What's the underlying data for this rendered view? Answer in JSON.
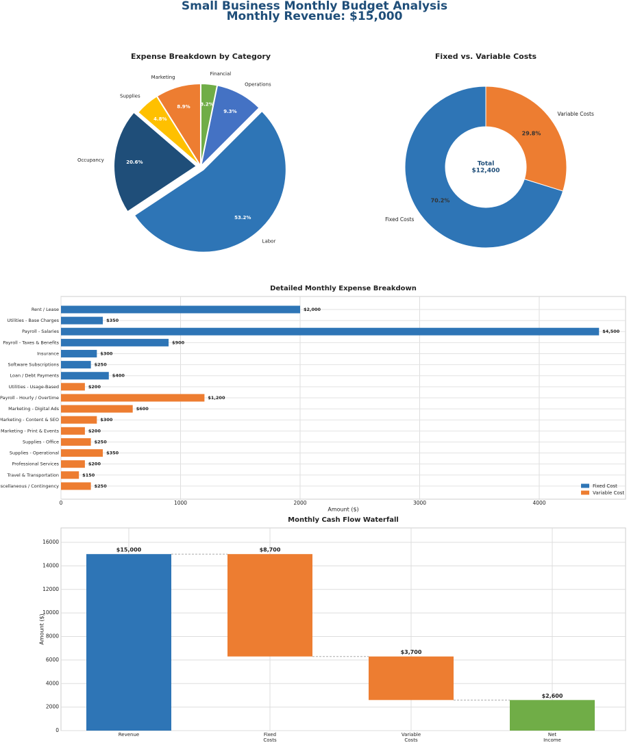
{
  "title_line1": "Small Business Monthly Budget Analysis",
  "title_line2": "Monthly Revenue: $15,000",
  "chart_data": [
    {
      "type": "pie",
      "title": "Expense Breakdown by Category",
      "labels": [
        "Labor",
        "Operations",
        "Financial",
        "Marketing",
        "Supplies",
        "Occupancy"
      ],
      "values": [
        53.2,
        9.3,
        3.2,
        8.9,
        4.8,
        20.6
      ],
      "pct_labels": [
        "53.2%",
        "9.3%",
        "3.2%",
        "8.9%",
        "4.8%",
        "20.6%"
      ],
      "colors": [
        "#2e75b6",
        "#4472c4",
        "#70ad47",
        "#ed7d31",
        "#ffc000",
        "#1f4e79"
      ],
      "exploded": [
        "Labor",
        "Occupancy"
      ]
    },
    {
      "type": "pie",
      "subtype": "donut",
      "title": "Fixed vs. Variable Costs",
      "labels": [
        "Fixed Costs",
        "Variable Costs"
      ],
      "values": [
        70.2,
        29.8
      ],
      "pct_labels": [
        "70.2%",
        "29.8%"
      ],
      "colors": [
        "#2e75b6",
        "#ed7d31"
      ],
      "center_label_1": "Total",
      "center_label_2": "$12,400"
    },
    {
      "type": "bar",
      "orientation": "horizontal",
      "title": "Detailed Monthly Expense Breakdown",
      "xlabel": "Amount ($)",
      "xlim": [
        0,
        4722
      ],
      "xticks": [
        "0",
        "1000",
        "2000",
        "3000",
        "4000"
      ],
      "xtick_values": [
        0,
        1000,
        2000,
        3000,
        4000
      ],
      "grid": true,
      "legend_position": "bottom-right",
      "legend": [
        "Fixed Cost",
        "Variable Cost"
      ],
      "colors": {
        "Fixed Cost": "#2e75b6",
        "Variable Cost": "#ed7d31"
      },
      "categories": [
        "Rent / Lease",
        "Utilities - Base Charges",
        "Payroll - Salaries",
        "Payroll - Taxes & Benefits",
        "Insurance",
        "Software Subscriptions",
        "Loan / Debt Payments",
        "Utilities - Usage-Based",
        "Payroll - Hourly / Overtime",
        "Marketing - Digital Ads",
        "Marketing - Content & SEO",
        "Marketing - Print & Events",
        "Supplies - Office",
        "Supplies - Operational",
        "Professional Services",
        "Travel & Transportation",
        "Miscellaneous / Contingency"
      ],
      "values": [
        2000,
        350,
        4500,
        900,
        300,
        250,
        400,
        200,
        1200,
        600,
        300,
        200,
        250,
        350,
        200,
        150,
        250
      ],
      "types": [
        "Fixed Cost",
        "Fixed Cost",
        "Fixed Cost",
        "Fixed Cost",
        "Fixed Cost",
        "Fixed Cost",
        "Fixed Cost",
        "Variable Cost",
        "Variable Cost",
        "Variable Cost",
        "Variable Cost",
        "Variable Cost",
        "Variable Cost",
        "Variable Cost",
        "Variable Cost",
        "Variable Cost",
        "Variable Cost"
      ],
      "value_labels": [
        "$2,000",
        "$350",
        "$4,500",
        "$900",
        "$300",
        "$250",
        "$400",
        "$200",
        "$1,200",
        "$600",
        "$300",
        "$200",
        "$250",
        "$350",
        "$200",
        "$150",
        "$250"
      ]
    },
    {
      "type": "bar",
      "subtype": "waterfall",
      "title": "Monthly Cash Flow Waterfall",
      "ylabel": "Amount ($)",
      "ylim": [
        0,
        17222
      ],
      "yticks": [
        "0",
        "2000",
        "4000",
        "6000",
        "8000",
        "10000",
        "12000",
        "14000",
        "16000"
      ],
      "ytick_values": [
        0,
        2000,
        4000,
        6000,
        8000,
        10000,
        12000,
        14000,
        16000
      ],
      "grid": true,
      "categories": [
        [
          "Revenue"
        ],
        [
          "Fixed",
          "Costs"
        ],
        [
          "Variable",
          "Costs"
        ],
        [
          "Net",
          "Income"
        ]
      ],
      "bottoms": [
        0,
        6300,
        2600,
        0
      ],
      "tops": [
        15000,
        15000,
        6300,
        2600
      ],
      "value_labels": [
        "$15,000",
        "$8,700",
        "$3,700",
        "$2,600"
      ],
      "colors": [
        "#2e75b6",
        "#ed7d31",
        "#ed7d31",
        "#70ad47"
      ]
    }
  ]
}
